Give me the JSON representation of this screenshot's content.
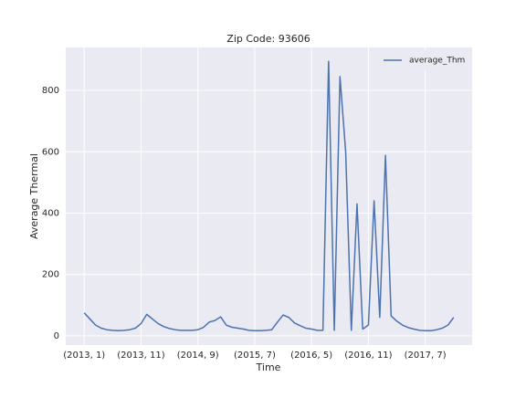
{
  "chart_data": {
    "type": "line",
    "title": "Zip Code: 93606",
    "x_label": "Time",
    "y_label": "Average Thermal",
    "categories": [
      "(2013, 1)",
      null,
      null,
      null,
      null,
      null,
      null,
      null,
      null,
      null,
      "(2013, 11)",
      null,
      null,
      null,
      null,
      null,
      null,
      null,
      null,
      null,
      "(2014, 9)",
      null,
      null,
      null,
      null,
      null,
      null,
      null,
      null,
      null,
      "(2015, 7)",
      null,
      null,
      null,
      null,
      null,
      null,
      null,
      null,
      null,
      "(2016, 5)",
      null,
      null,
      null,
      null,
      null,
      null,
      null,
      null,
      null,
      "(2016, 11)",
      null,
      null,
      null,
      null,
      null,
      null,
      null,
      null,
      null,
      "(2017, 7)",
      null,
      null,
      null,
      null,
      null
    ],
    "series": [
      {
        "name": "average_Thm",
        "color": "#4c72b0",
        "values": [
          75,
          55,
          35,
          25,
          20,
          18,
          17,
          18,
          20,
          25,
          40,
          70,
          55,
          40,
          30,
          24,
          20,
          18,
          18,
          18,
          20,
          28,
          45,
          50,
          62,
          35,
          28,
          25,
          22,
          18,
          17,
          17,
          18,
          20,
          45,
          68,
          60,
          42,
          33,
          25,
          22,
          18,
          18,
          895,
          18,
          845,
          600,
          18,
          430,
          22,
          35,
          440,
          60,
          588,
          65,
          48,
          35,
          27,
          22,
          18,
          17,
          17,
          20,
          25,
          35,
          60
        ]
      }
    ],
    "ylim": [
      -30,
      940
    ],
    "yticks": [
      0,
      200,
      400,
      600,
      800
    ],
    "grid": true,
    "legend": "upper right"
  }
}
